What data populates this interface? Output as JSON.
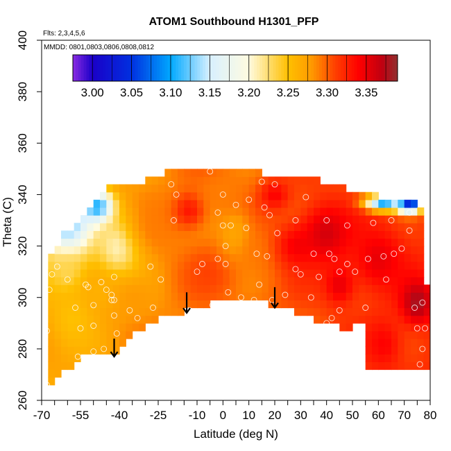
{
  "chart_data": {
    "type": "heatmap",
    "title": "ATOM1 Southbound H1301_PFP",
    "notes": {
      "flights": "Flts: 2,3,4,5,6",
      "dates": "MMDD: 0801,0803,0806,0808,0812"
    },
    "xlabel": "Latitude (deg N)",
    "ylabel": "Theta (C)",
    "xlim": [
      -70,
      80
    ],
    "ylim": [
      260,
      400
    ],
    "x_tick_labels": [
      -70,
      -55,
      -40,
      -25,
      -10,
      0,
      10,
      20,
      30,
      40,
      50,
      60,
      70,
      80
    ],
    "x_minor_ticks": [
      -70,
      -65,
      -60,
      -55,
      -50,
      -45,
      -40,
      -35,
      -30,
      -25,
      -20,
      -15,
      -10,
      -5,
      0,
      5,
      10,
      15,
      20,
      25,
      30,
      35,
      40,
      45,
      50,
      55,
      60,
      65,
      70,
      75,
      80
    ],
    "y_ticks": [
      260,
      280,
      300,
      320,
      340,
      360,
      380,
      400
    ],
    "colorbar": {
      "range": [
        2.975,
        3.39
      ],
      "tick_labels": [
        3.0,
        3.05,
        3.1,
        3.15,
        3.2,
        3.25,
        3.3,
        3.35
      ],
      "tick_decimals": 2,
      "stops": [
        {
          "v": 2.975,
          "color": "#8a2be2"
        },
        {
          "v": 3.0,
          "color": "#1a00c8"
        },
        {
          "v": 3.05,
          "color": "#0030e0"
        },
        {
          "v": 3.1,
          "color": "#00a8ff"
        },
        {
          "v": 3.15,
          "color": "#d8f0ff"
        },
        {
          "v": 3.2,
          "color": "#fffbe0"
        },
        {
          "v": 3.25,
          "color": "#ffc000"
        },
        {
          "v": 3.28,
          "color": "#ff9a00"
        },
        {
          "v": 3.31,
          "color": "#ff4000"
        },
        {
          "v": 3.34,
          "color": "#ff0000"
        },
        {
          "v": 3.37,
          "color": "#c00010"
        },
        {
          "v": 3.39,
          "color": "#903030"
        }
      ]
    },
    "domain_boundary": {
      "top": [
        [
          -68,
          312
        ],
        [
          -62,
          324
        ],
        [
          -52,
          334
        ],
        [
          -47,
          342
        ],
        [
          -40,
          344
        ],
        [
          -28,
          346
        ],
        [
          -20,
          349
        ],
        [
          -5,
          350
        ],
        [
          10,
          349
        ],
        [
          20,
          348
        ],
        [
          35,
          346
        ],
        [
          45,
          343
        ],
        [
          55,
          340
        ],
        [
          65,
          339
        ],
        [
          72,
          338
        ],
        [
          76,
          336
        ],
        [
          78,
          320
        ],
        [
          79,
          300
        ],
        [
          80,
          280
        ],
        [
          79,
          272
        ]
      ],
      "bottom": [
        [
          56,
          272
        ],
        [
          56,
          290
        ],
        [
          48,
          288
        ],
        [
          38,
          290
        ],
        [
          28,
          294
        ],
        [
          20,
          297
        ],
        [
          8,
          299
        ],
        [
          2,
          299
        ],
        [
          -4,
          298
        ],
        [
          -12,
          296
        ],
        [
          -28,
          290
        ],
        [
          -36,
          284
        ],
        [
          -42,
          277
        ],
        [
          -50,
          279
        ],
        [
          -54,
          277
        ],
        [
          -62,
          271
        ],
        [
          -67,
          264
        ]
      ]
    },
    "anomalies": [
      {
        "x": -60,
        "y": 329,
        "v": 3.12,
        "rx": 10,
        "ry": 14
      },
      {
        "x": -48,
        "y": 335,
        "v": 3.09,
        "rx": 6,
        "ry": 6
      },
      {
        "x": -40,
        "y": 320,
        "v": 3.2,
        "rx": 9,
        "ry": 13
      },
      {
        "x": -60,
        "y": 310,
        "v": 3.23,
        "rx": 7,
        "ry": 9
      },
      {
        "x": -58,
        "y": 292,
        "v": 3.25,
        "rx": 9,
        "ry": 12
      },
      {
        "x": -46,
        "y": 302,
        "v": 3.26,
        "rx": 8,
        "ry": 8
      },
      {
        "x": -34,
        "y": 299,
        "v": 3.28,
        "rx": 9,
        "ry": 10
      },
      {
        "x": -25,
        "y": 328,
        "v": 3.29,
        "rx": 12,
        "ry": 12
      },
      {
        "x": -13,
        "y": 334,
        "v": 3.33,
        "rx": 6,
        "ry": 7
      },
      {
        "x": -5,
        "y": 310,
        "v": 3.31,
        "rx": 10,
        "ry": 10
      },
      {
        "x": 5,
        "y": 325,
        "v": 3.27,
        "rx": 7,
        "ry": 10
      },
      {
        "x": 15,
        "y": 318,
        "v": 3.29,
        "rx": 8,
        "ry": 10
      },
      {
        "x": 28,
        "y": 320,
        "v": 3.34,
        "rx": 8,
        "ry": 9
      },
      {
        "x": 40,
        "y": 325,
        "v": 3.36,
        "rx": 10,
        "ry": 12
      },
      {
        "x": 45,
        "y": 305,
        "v": 3.35,
        "rx": 6,
        "ry": 8
      },
      {
        "x": 60,
        "y": 315,
        "v": 3.35,
        "rx": 10,
        "ry": 12
      },
      {
        "x": 75,
        "y": 298,
        "v": 3.38,
        "rx": 6,
        "ry": 8
      },
      {
        "x": 72,
        "y": 336,
        "v": 3.02,
        "rx": 5,
        "ry": 3
      },
      {
        "x": 62,
        "y": 337,
        "v": 3.1,
        "rx": 7,
        "ry": 3
      },
      {
        "x": 20,
        "y": 340,
        "v": 3.34,
        "rx": 6,
        "ry": 6
      },
      {
        "x": 0,
        "y": 342,
        "v": 3.29,
        "rx": 8,
        "ry": 6
      },
      {
        "x": 62,
        "y": 282,
        "v": 3.34,
        "rx": 7,
        "ry": 10
      }
    ],
    "points": [
      [
        -68,
        266
      ],
      [
        -68,
        287
      ],
      [
        -67,
        303
      ],
      [
        -66,
        309
      ],
      [
        -64,
        312
      ],
      [
        -60,
        307
      ],
      [
        -57,
        296
      ],
      [
        -56,
        277
      ],
      [
        -55,
        288
      ],
      [
        -53,
        305
      ],
      [
        -52,
        304
      ],
      [
        -50,
        297
      ],
      [
        -50,
        289
      ],
      [
        -50,
        279
      ],
      [
        -47,
        306
      ],
      [
        -46,
        280
      ],
      [
        -45,
        303
      ],
      [
        -43,
        301
      ],
      [
        -43,
        299
      ],
      [
        -42,
        299
      ],
      [
        -42,
        293
      ],
      [
        -42,
        308
      ],
      [
        -41,
        286
      ],
      [
        -36,
        295
      ],
      [
        -33,
        292
      ],
      [
        -28,
        312
      ],
      [
        -27,
        296
      ],
      [
        -26,
        288
      ],
      [
        -24,
        307
      ],
      [
        -20,
        344
      ],
      [
        -19,
        330
      ],
      [
        -18,
        340
      ],
      [
        -13,
        295
      ],
      [
        -10,
        310
      ],
      [
        -10,
        286
      ],
      [
        -8,
        313
      ],
      [
        -5,
        349
      ],
      [
        -4,
        297
      ],
      [
        -2,
        333
      ],
      [
        -2,
        315
      ],
      [
        0,
        340
      ],
      [
        0,
        328
      ],
      [
        1,
        320
      ],
      [
        1,
        313
      ],
      [
        2,
        302
      ],
      [
        3,
        328
      ],
      [
        5,
        336
      ],
      [
        7,
        300
      ],
      [
        9,
        327
      ],
      [
        10,
        338
      ],
      [
        12,
        299
      ],
      [
        13,
        317
      ],
      [
        14,
        305
      ],
      [
        15,
        345
      ],
      [
        16,
        335
      ],
      [
        17,
        316
      ],
      [
        18,
        332
      ],
      [
        19,
        299
      ],
      [
        20,
        344
      ],
      [
        21,
        325
      ],
      [
        24,
        301
      ],
      [
        28,
        330
      ],
      [
        28,
        311
      ],
      [
        30,
        309
      ],
      [
        32,
        339
      ],
      [
        34,
        300
      ],
      [
        35,
        317
      ],
      [
        37,
        308
      ],
      [
        40,
        290
      ],
      [
        40,
        330
      ],
      [
        41,
        317
      ],
      [
        42,
        292
      ],
      [
        43,
        315
      ],
      [
        45,
        295
      ],
      [
        45,
        310
      ],
      [
        48,
        328
      ],
      [
        48,
        313
      ],
      [
        51,
        310
      ],
      [
        52,
        343
      ],
      [
        55,
        296
      ],
      [
        56,
        315
      ],
      [
        58,
        329
      ],
      [
        62,
        316
      ],
      [
        63,
        307
      ],
      [
        65,
        330
      ],
      [
        66,
        317
      ],
      [
        69,
        319
      ],
      [
        72,
        326
      ],
      [
        72,
        333
      ],
      [
        74,
        296
      ],
      [
        75,
        288
      ],
      [
        76,
        274
      ],
      [
        77,
        280
      ],
      [
        77,
        298
      ],
      [
        78,
        288
      ]
    ],
    "arrows": [
      {
        "x": -42,
        "y_top": 284,
        "y_bottom": 277
      },
      {
        "x": -14,
        "y_top": 302,
        "y_bottom": 294
      },
      {
        "x": 20,
        "y_top": 304,
        "y_bottom": 296
      }
    ]
  }
}
